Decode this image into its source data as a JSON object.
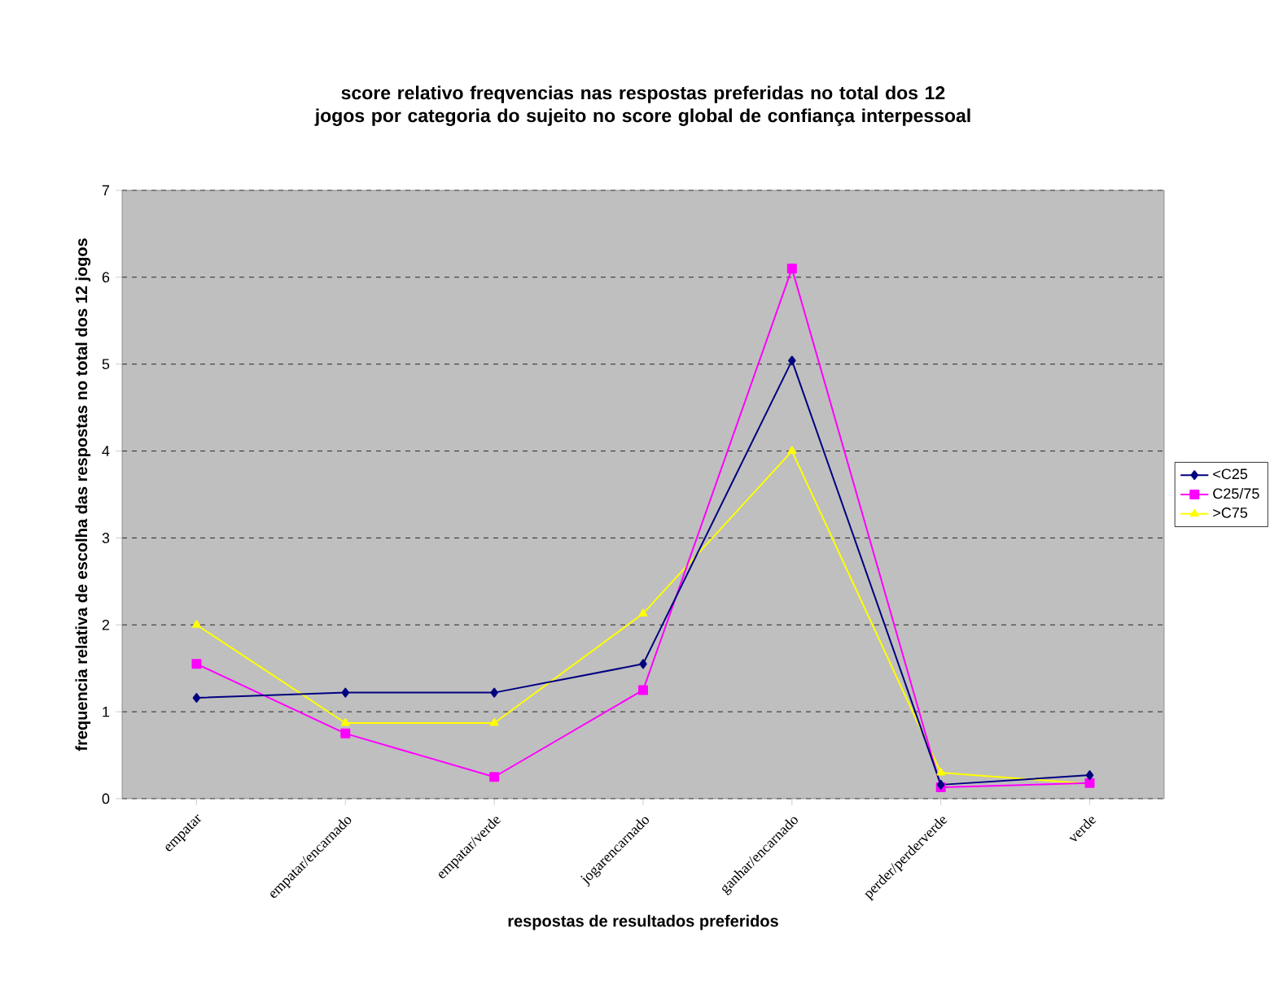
{
  "chart_data": {
    "type": "line",
    "title": "score relativo freqvencias nas respostas preferidas no total dos 12 jogos por categoria do sujeito no score global de confiança interpessoal",
    "xlabel": "respostas de resultados preferidos",
    "ylabel": "frequencia relativa de escolha das respostas no total dos 12 jogos",
    "categories": [
      "empatar",
      "empatar/encarnado",
      "empatar/verde",
      "jogarencarnado",
      "ganhar/encarnado",
      "perder/perderverde",
      "verde"
    ],
    "series": [
      {
        "name": "<C25",
        "color": "#000080",
        "marker": "diamond",
        "values": [
          1.16,
          1.22,
          1.22,
          1.55,
          5.04,
          0.16,
          0.27
        ]
      },
      {
        "name": "C25/75",
        "color": "#ff00ff",
        "marker": "square",
        "values": [
          1.55,
          0.75,
          0.25,
          1.25,
          6.1,
          0.13,
          0.18
        ]
      },
      {
        "name": ">C75",
        "color": "#ffff00",
        "marker": "triangle",
        "values": [
          2.0,
          0.87,
          0.87,
          2.13,
          4.0,
          0.3,
          0.17
        ]
      }
    ],
    "ylim": [
      0,
      7
    ],
    "yticks": [
      0,
      1,
      2,
      3,
      4,
      5,
      6,
      7
    ],
    "grid": "y",
    "legend": "right"
  }
}
